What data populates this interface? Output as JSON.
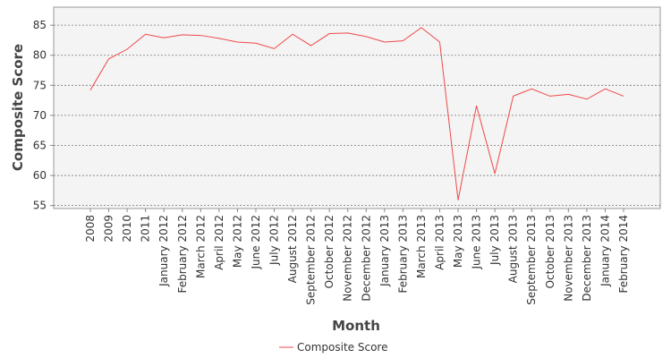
{
  "chart_data": {
    "type": "line",
    "x_label": "Month",
    "y_label": "Composite Score",
    "categories": [
      "2008",
      "2009",
      "2010",
      "2011",
      "January 2012",
      "February 2012",
      "March 2012",
      "April 2012",
      "May 2012",
      "June 2012",
      "July 2012",
      "August 2012",
      "September 2012",
      "October 2012",
      "November 2012",
      "December 2012",
      "January 2013",
      "February 2013",
      "March 2013",
      "April 2013",
      "May 2013",
      "June 2013",
      "July 2013",
      "August 2013",
      "September 2013",
      "October 2013",
      "November 2013",
      "December 2013",
      "January 2014",
      "February 2014"
    ],
    "series": [
      {
        "name": "Composite Score",
        "color": "#f04848",
        "values": [
          74.2,
          79.4,
          81.0,
          83.5,
          82.9,
          83.4,
          83.3,
          82.8,
          82.2,
          82.0,
          81.1,
          83.5,
          81.6,
          83.6,
          83.7,
          83.1,
          82.2,
          82.4,
          84.6,
          82.2,
          55.9,
          71.6,
          60.3,
          73.2,
          74.4,
          73.2,
          73.5,
          72.7,
          74.4,
          73.2
        ]
      }
    ],
    "ylim": [
      54.5,
      88
    ],
    "yticks": [
      55,
      60,
      65,
      70,
      75,
      80,
      85
    ],
    "grid": true
  }
}
